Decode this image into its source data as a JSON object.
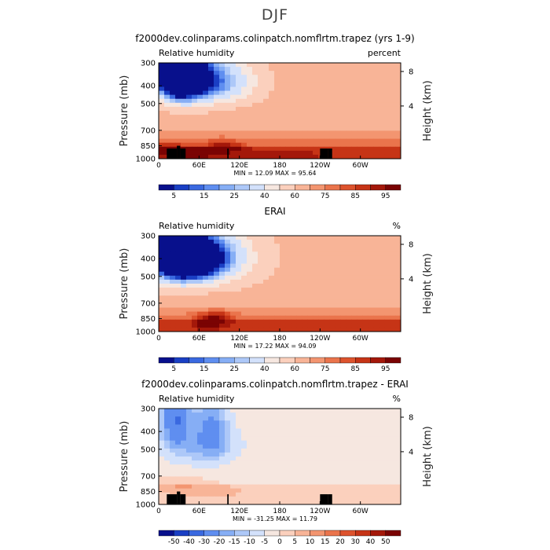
{
  "figure": {
    "title": "DJF"
  },
  "chart_data": [
    {
      "type": "heatmap",
      "title": "f2000dev.colinparams.colinpatch.nomflrtm.trapez (yrs 1-9)",
      "subtitle_left": "Relative humidity",
      "subtitle_right": "percent",
      "ylabel": "Pressure (mb)",
      "ylabel_right": "Height (km)",
      "pressure_ticks": [
        "300",
        "400",
        "500",
        "700",
        "850",
        "1000"
      ],
      "height_ticks": [
        "8",
        "4"
      ],
      "lon_ticks": [
        "0",
        "60E",
        "120E",
        "180",
        "120W",
        "60W"
      ],
      "min_max_text": "MIN =   12.09   MAX =   95.64",
      "min": 12.09,
      "max": 95.64,
      "colorbar": {
        "labels": [
          "5",
          "15",
          "25",
          "40",
          "60",
          "75",
          "85",
          "95"
        ],
        "colors": [
          "#08108c",
          "#1a3fc4",
          "#3a69e0",
          "#5f8ef0",
          "#86aef5",
          "#adc8f8",
          "#d3e1fb",
          "#f6e7e0",
          "#fbd0bd",
          "#f8b497",
          "#f39570",
          "#ea744c",
          "#dd532d",
          "#c63416",
          "#a4180a",
          "#7a0303"
        ]
      },
      "topography": [
        [
          12,
          27,
          "880"
        ],
        [
          27,
          32,
          "850"
        ],
        [
          32,
          40,
          "880"
        ],
        [
          102,
          104,
          "880"
        ],
        [
          240,
          252,
          "880"
        ],
        [
          252,
          258,
          "880"
        ]
      ],
      "features": {
        "blue": [
          [
            27,
            20,
            310,
            8,
            120
          ],
          [
            42,
            30,
            330,
            12,
            140
          ],
          [
            78,
            62,
            380,
            10,
            110
          ],
          [
            12,
            48,
            340,
            10,
            120
          ]
        ],
        "red": [
          [
            10,
            30,
            880,
            20,
            60
          ],
          [
            95,
            25,
            860,
            18,
            60
          ],
          [
            50,
            30,
            930,
            10,
            50
          ]
        ]
      },
      "base_rh": 65,
      "lower_rh": 82
    },
    {
      "type": "heatmap",
      "title": "ERAI",
      "subtitle_left": "Relative humidity",
      "subtitle_right": "%",
      "ylabel": "Pressure (mb)",
      "ylabel_right": "Height (km)",
      "pressure_ticks": [
        "300",
        "400",
        "500",
        "700",
        "850",
        "1000"
      ],
      "height_ticks": [
        "8",
        "4"
      ],
      "lon_ticks": [
        "0",
        "60E",
        "120E",
        "180",
        "120W",
        "60W"
      ],
      "min_max_text": "MIN =   17.22   MAX =   94.09",
      "min": 17.22,
      "max": 94.09,
      "colorbar": {
        "labels": [
          "5",
          "15",
          "25",
          "40",
          "60",
          "75",
          "85",
          "95"
        ],
        "colors": [
          "#08108c",
          "#1a3fc4",
          "#3a69e0",
          "#5f8ef0",
          "#86aef5",
          "#adc8f8",
          "#d3e1fb",
          "#f6e7e0",
          "#fbd0bd",
          "#f8b497",
          "#f39570",
          "#ea744c",
          "#dd532d",
          "#c63416",
          "#a4180a",
          "#7a0303"
        ]
      },
      "topography": [],
      "features": {
        "blue": [
          [
            30,
            12,
            350,
            8,
            100
          ],
          [
            20,
            45,
            340,
            10,
            150
          ],
          [
            72,
            60,
            390,
            10,
            120
          ],
          [
            40,
            50,
            420,
            10,
            120
          ]
        ],
        "red": [
          [
            75,
            20,
            900,
            15,
            60
          ],
          [
            85,
            25,
            830,
            10,
            60
          ]
        ]
      },
      "base_rh": 62,
      "lower_rh": 80
    },
    {
      "type": "heatmap",
      "title": "f2000dev.colinparams.colinpatch.nomflrtm.trapez - ERAI",
      "subtitle_left": "Relative humidity",
      "subtitle_right": "%",
      "ylabel": "Pressure (mb)",
      "ylabel_right": "Height (km)",
      "pressure_ticks": [
        "300",
        "400",
        "500",
        "700",
        "850",
        "1000"
      ],
      "height_ticks": [
        "8",
        "4"
      ],
      "lon_ticks": [
        "0",
        "60E",
        "120E",
        "180",
        "120W",
        "60W"
      ],
      "min_max_text": "MIN =  -31.25   MAX =   11.79",
      "min": -31.25,
      "max": 11.79,
      "colorbar": {
        "labels": [
          "-50",
          "-40",
          "-30",
          "-20",
          "-15",
          "-10",
          "-5",
          "0",
          "5",
          "10",
          "15",
          "20",
          "30",
          "40",
          "50"
        ],
        "colors": [
          "#08108c",
          "#1a3fc4",
          "#3a69e0",
          "#5f8ef0",
          "#86aef5",
          "#adc8f8",
          "#d3e1fb",
          "#f6e7e0",
          "#fbd0bd",
          "#f8b497",
          "#f39570",
          "#ea744c",
          "#dd532d",
          "#c63416",
          "#a4180a",
          "#7a0303"
        ]
      },
      "topography": [
        [
          12,
          27,
          "880"
        ],
        [
          27,
          32,
          "850"
        ],
        [
          32,
          40,
          "880"
        ],
        [
          102,
          104,
          "880"
        ],
        [
          240,
          252,
          "880"
        ],
        [
          252,
          258,
          "880"
        ]
      ],
      "features": {
        "blue": [
          [
            24,
            15,
            360,
            10,
            130
          ],
          [
            83,
            20,
            380,
            10,
            130
          ],
          [
            30,
            40,
            320,
            10,
            120
          ],
          [
            65,
            50,
            480,
            10,
            120
          ]
        ],
        "red": [
          [
            30,
            40,
            780,
            10,
            80
          ],
          [
            70,
            60,
            850,
            15,
            80
          ]
        ]
      },
      "base_rh": 0,
      "lower_rh": 0
    }
  ]
}
